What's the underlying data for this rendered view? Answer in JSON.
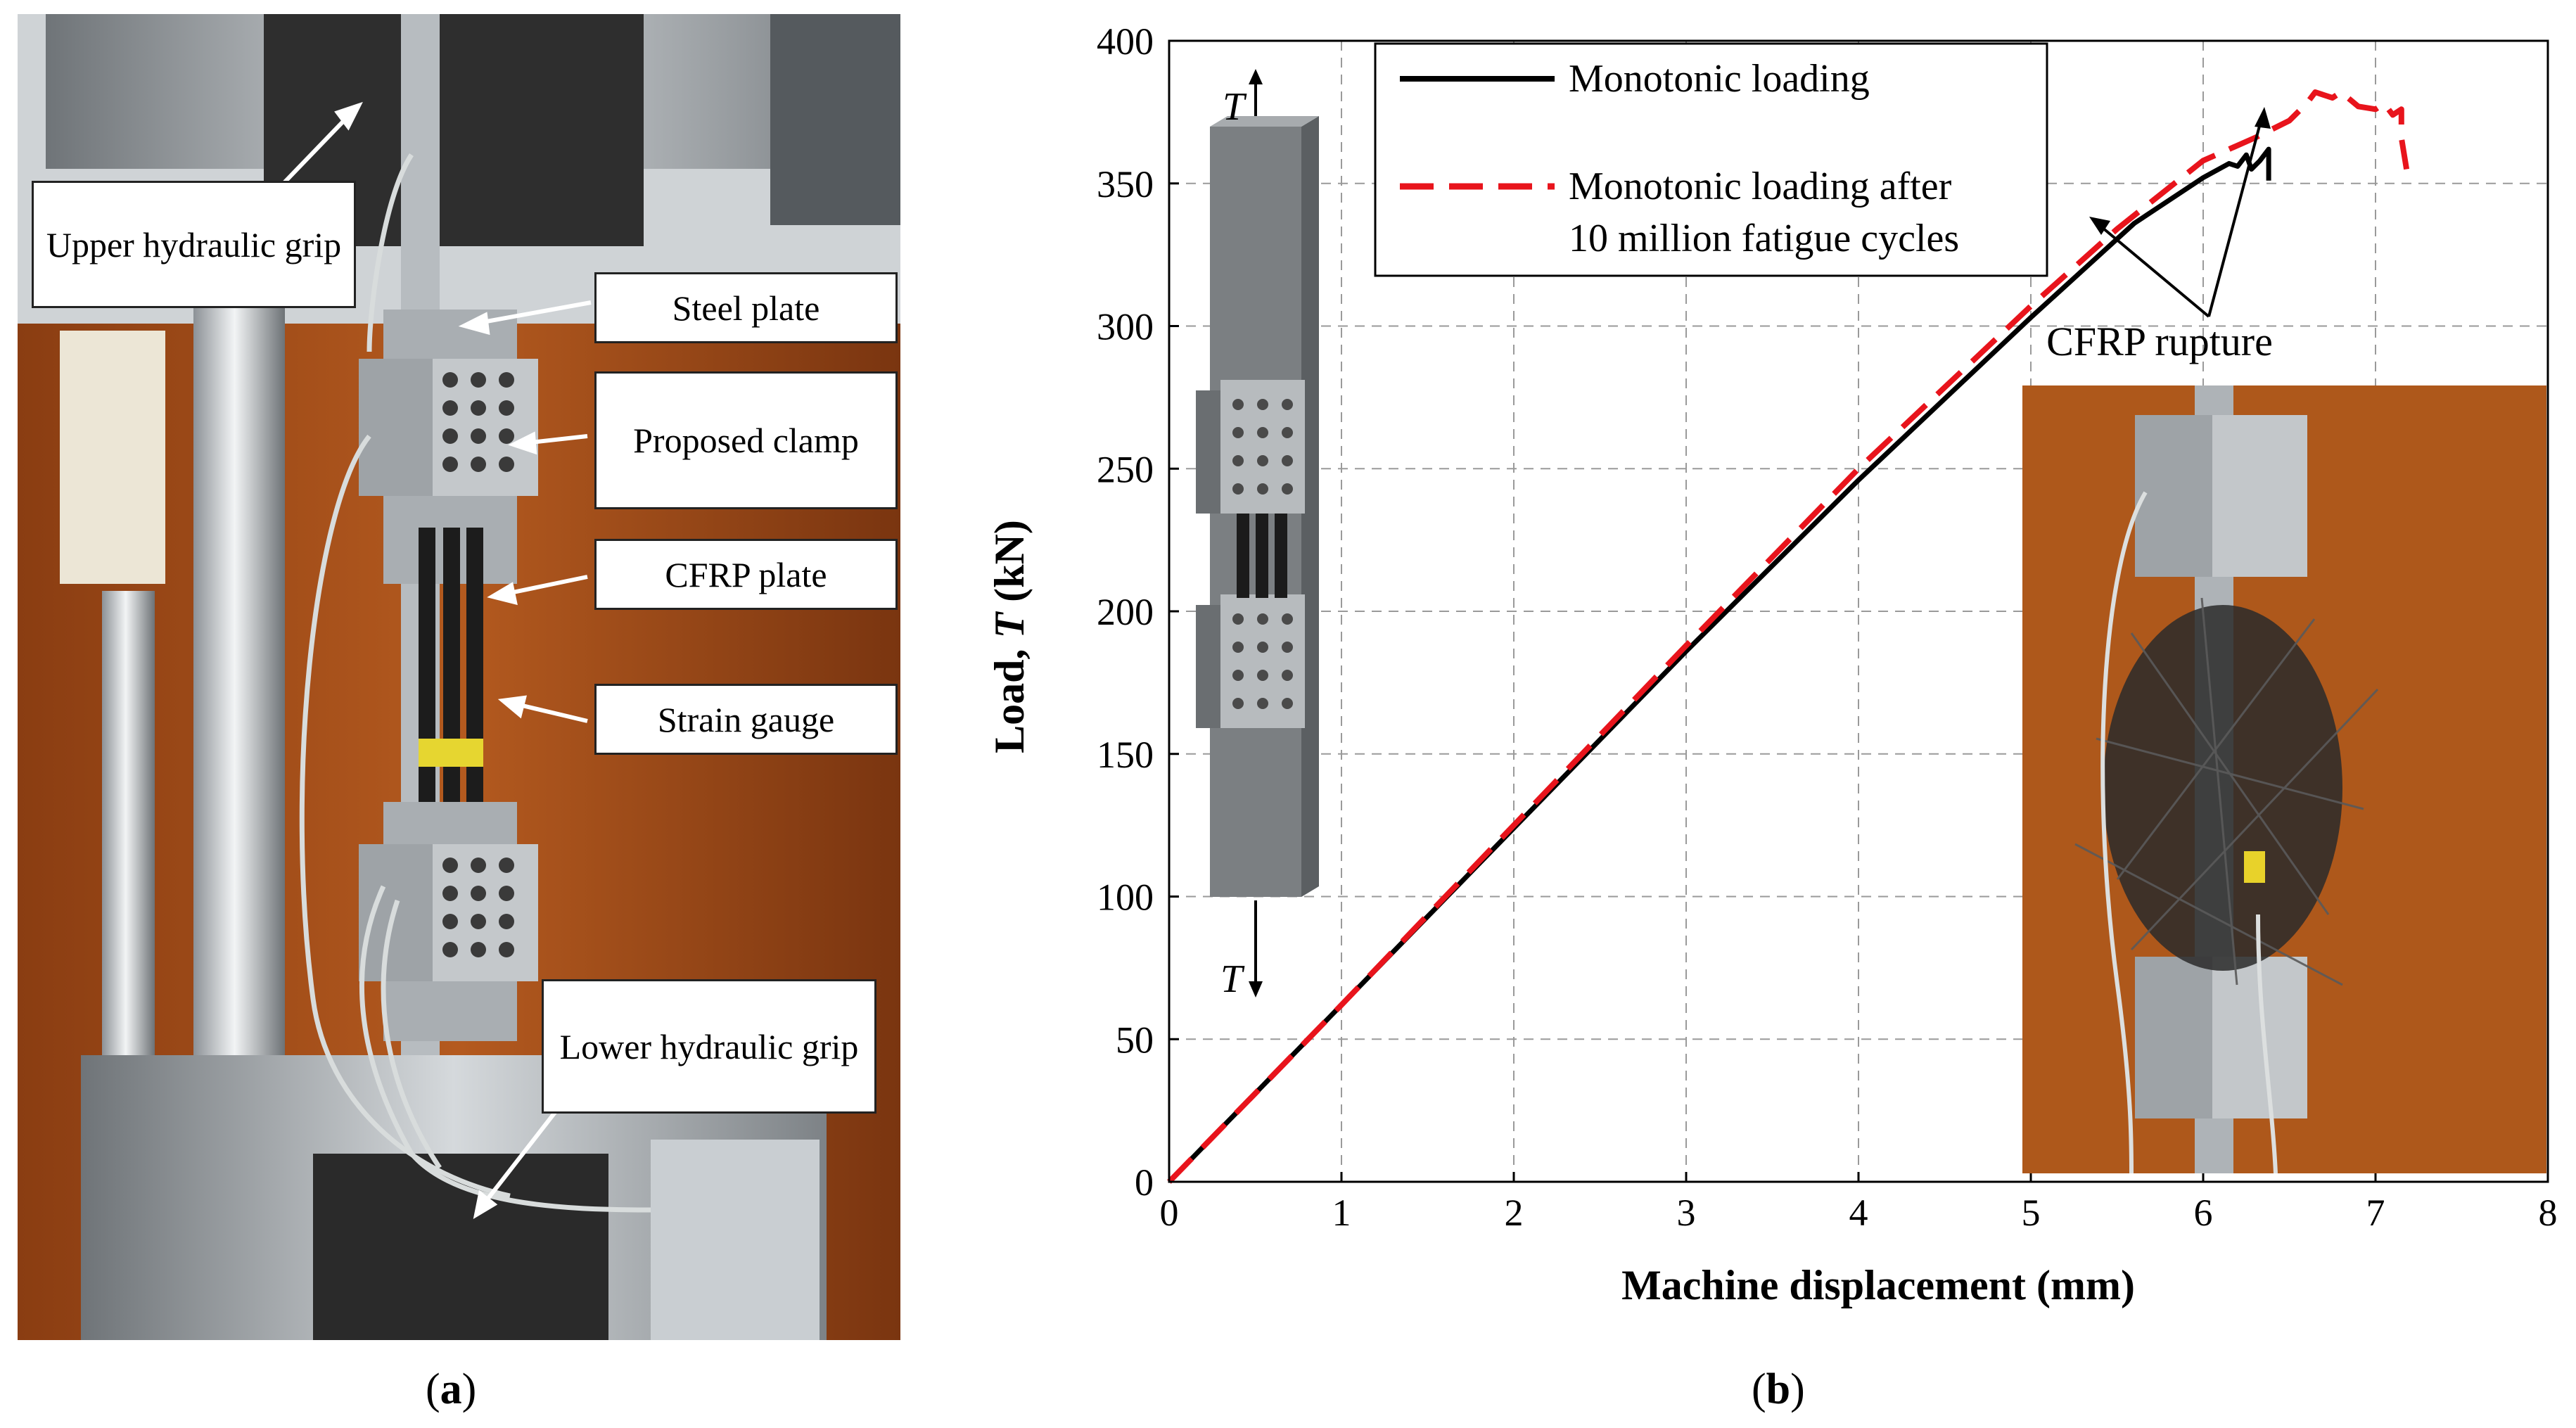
{
  "panel_a": {
    "caption": "a",
    "callouts": [
      {
        "id": "upper-grip",
        "text": "Upper hydraulic grip"
      },
      {
        "id": "steel-plate",
        "text": "Steel plate"
      },
      {
        "id": "proposed-clamp",
        "text": "Proposed clamp"
      },
      {
        "id": "cfrp-plate",
        "text": "CFRP plate"
      },
      {
        "id": "strain-gauge",
        "text": "Strain gauge"
      },
      {
        "id": "lower-grip",
        "text": "Lower hydraulic grip"
      }
    ]
  },
  "panel_b": {
    "caption": "b"
  },
  "chart_data": {
    "type": "line",
    "xlabel": "Machine displacement (mm)",
    "ylabel_prefix": "Load, ",
    "ylabel_var": "T",
    "ylabel_suffix": " (kN)",
    "xlim": [
      0,
      8
    ],
    "ylim": [
      0,
      400
    ],
    "x_ticks": [
      0,
      1,
      2,
      3,
      4,
      5,
      6,
      7,
      8
    ],
    "y_ticks": [
      0,
      50,
      100,
      150,
      200,
      250,
      300,
      350,
      400
    ],
    "grid": true,
    "legend_position": "top",
    "series": [
      {
        "name": "Monotonic loading",
        "color": "#000000",
        "style": "solid",
        "points": [
          [
            0,
            0
          ],
          [
            1,
            62
          ],
          [
            2,
            124
          ],
          [
            3,
            186
          ],
          [
            4,
            246
          ],
          [
            5,
            303
          ],
          [
            5.6,
            336
          ],
          [
            6.0,
            352
          ],
          [
            6.15,
            357
          ],
          [
            6.2,
            356
          ],
          [
            6.25,
            360
          ],
          [
            6.28,
            355
          ],
          [
            6.33,
            358
          ],
          [
            6.38,
            362
          ],
          [
            6.38,
            351
          ]
        ]
      },
      {
        "name_line1": "Monotonic loading after",
        "name_line2": "10 million fatigue cycles",
        "color": "#e8141c",
        "style": "dashed",
        "points": [
          [
            0,
            0
          ],
          [
            1,
            62
          ],
          [
            2,
            125
          ],
          [
            3,
            188
          ],
          [
            4,
            250
          ],
          [
            5,
            307
          ],
          [
            5.5,
            334
          ],
          [
            6.0,
            358
          ],
          [
            6.3,
            366
          ],
          [
            6.5,
            372
          ],
          [
            6.6,
            378
          ],
          [
            6.65,
            382
          ],
          [
            6.75,
            380
          ],
          [
            6.8,
            382
          ],
          [
            6.9,
            377
          ],
          [
            7.0,
            376
          ],
          [
            7.05,
            378
          ],
          [
            7.1,
            374
          ],
          [
            7.15,
            376
          ],
          [
            7.15,
            366
          ],
          [
            7.18,
            355
          ]
        ]
      }
    ],
    "annotation": {
      "text": "CFRP rupture",
      "var_label": "T"
    }
  }
}
